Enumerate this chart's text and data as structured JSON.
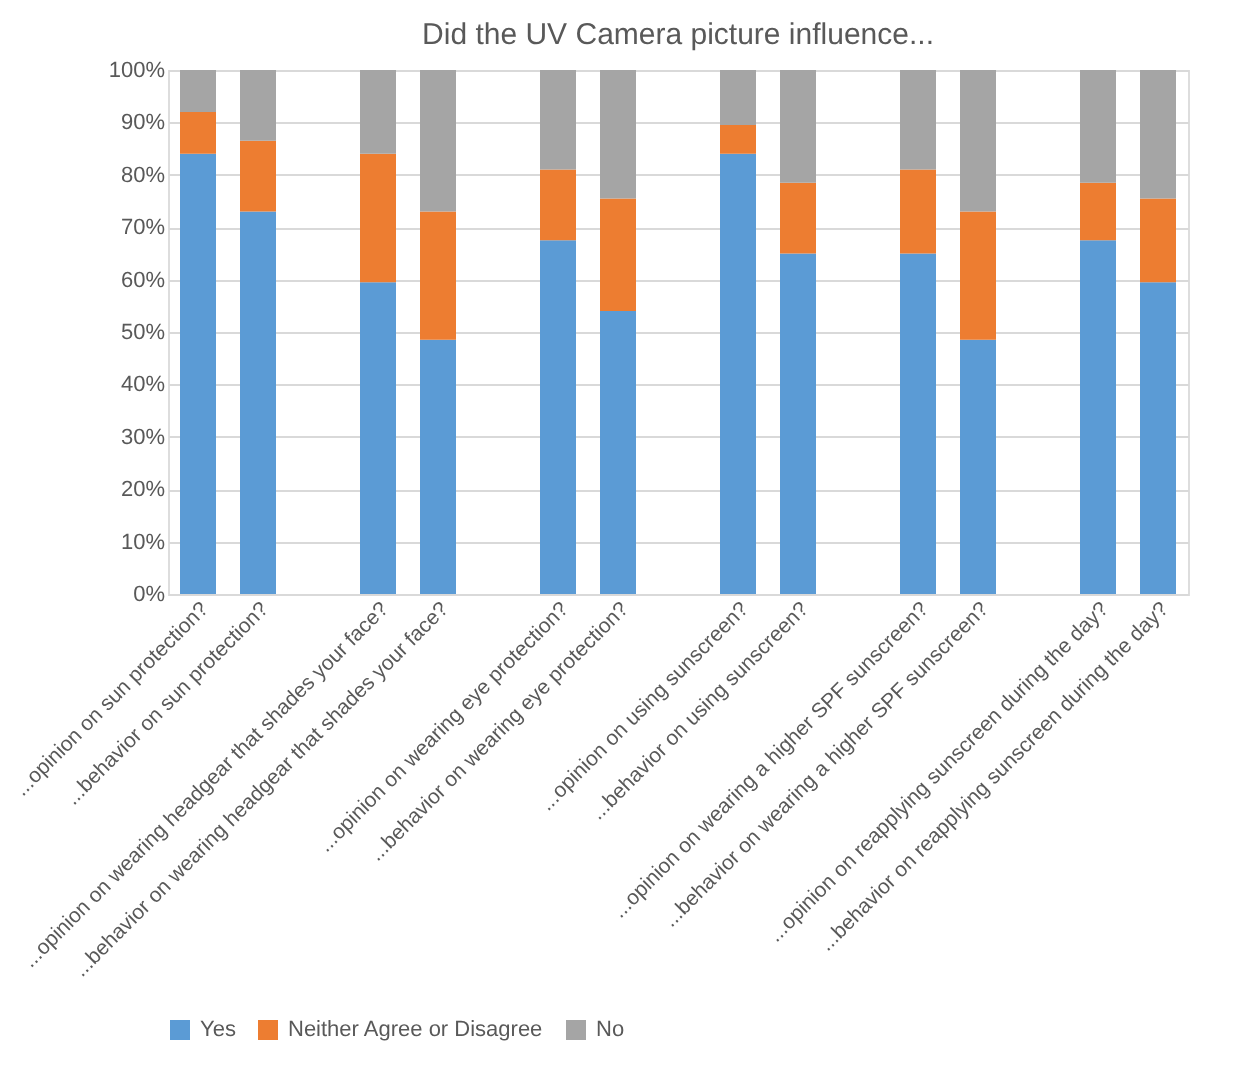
{
  "chart_data": {
    "type": "bar",
    "title": "Did the UV Camera picture influence...",
    "stacked": true,
    "categories": [
      "...opinion on sun protection?",
      "...behavior on sun protection?",
      null,
      "...opinion on wearing headgear that shades your face?",
      "...behavior on wearing headgear that shades your face?",
      null,
      "...opinion on wearing eye protection?",
      "...behavior on wearing eye protection?",
      null,
      "...opinion on using sunscreen?",
      "...behavior on using sunscreen?",
      null,
      "...opinion on wearing a higher SPF sunscreen?",
      "...behavior on wearing a higher SPF sunscreen?",
      null,
      "...opinion on reapplying sunscreen during the day?",
      "...behavior on reapplying sunscreen during the day?"
    ],
    "series": [
      {
        "name": "Yes",
        "color": "#5b9bd5",
        "values": [
          84,
          73,
          null,
          59.5,
          48.5,
          null,
          67.5,
          54,
          null,
          84,
          65,
          null,
          65,
          48.5,
          null,
          67.5,
          59.5
        ]
      },
      {
        "name": "Neither Agree or Disagree",
        "color": "#ed7d31",
        "values": [
          8,
          13.5,
          null,
          24.5,
          24.5,
          null,
          13.5,
          21.5,
          null,
          5.5,
          13.5,
          null,
          16,
          24.5,
          null,
          11,
          16
        ]
      },
      {
        "name": "No",
        "color": "#a5a5a5",
        "values": [
          8,
          13.5,
          null,
          16,
          27,
          null,
          19,
          24.5,
          null,
          10.5,
          21.5,
          null,
          19,
          27,
          null,
          21.5,
          24.5
        ]
      }
    ],
    "ylim": [
      0,
      100
    ],
    "yticks": [
      {
        "value": 0,
        "label": "0%"
      },
      {
        "value": 10,
        "label": "10%"
      },
      {
        "value": 20,
        "label": "20%"
      },
      {
        "value": 30,
        "label": "30%"
      },
      {
        "value": 40,
        "label": "40%"
      },
      {
        "value": 50,
        "label": "50%"
      },
      {
        "value": 60,
        "label": "60%"
      },
      {
        "value": 70,
        "label": "70%"
      },
      {
        "value": 80,
        "label": "80%"
      },
      {
        "value": 90,
        "label": "90%"
      },
      {
        "value": 100,
        "label": "100%"
      }
    ],
    "grid": "y",
    "legend": "bottom"
  }
}
